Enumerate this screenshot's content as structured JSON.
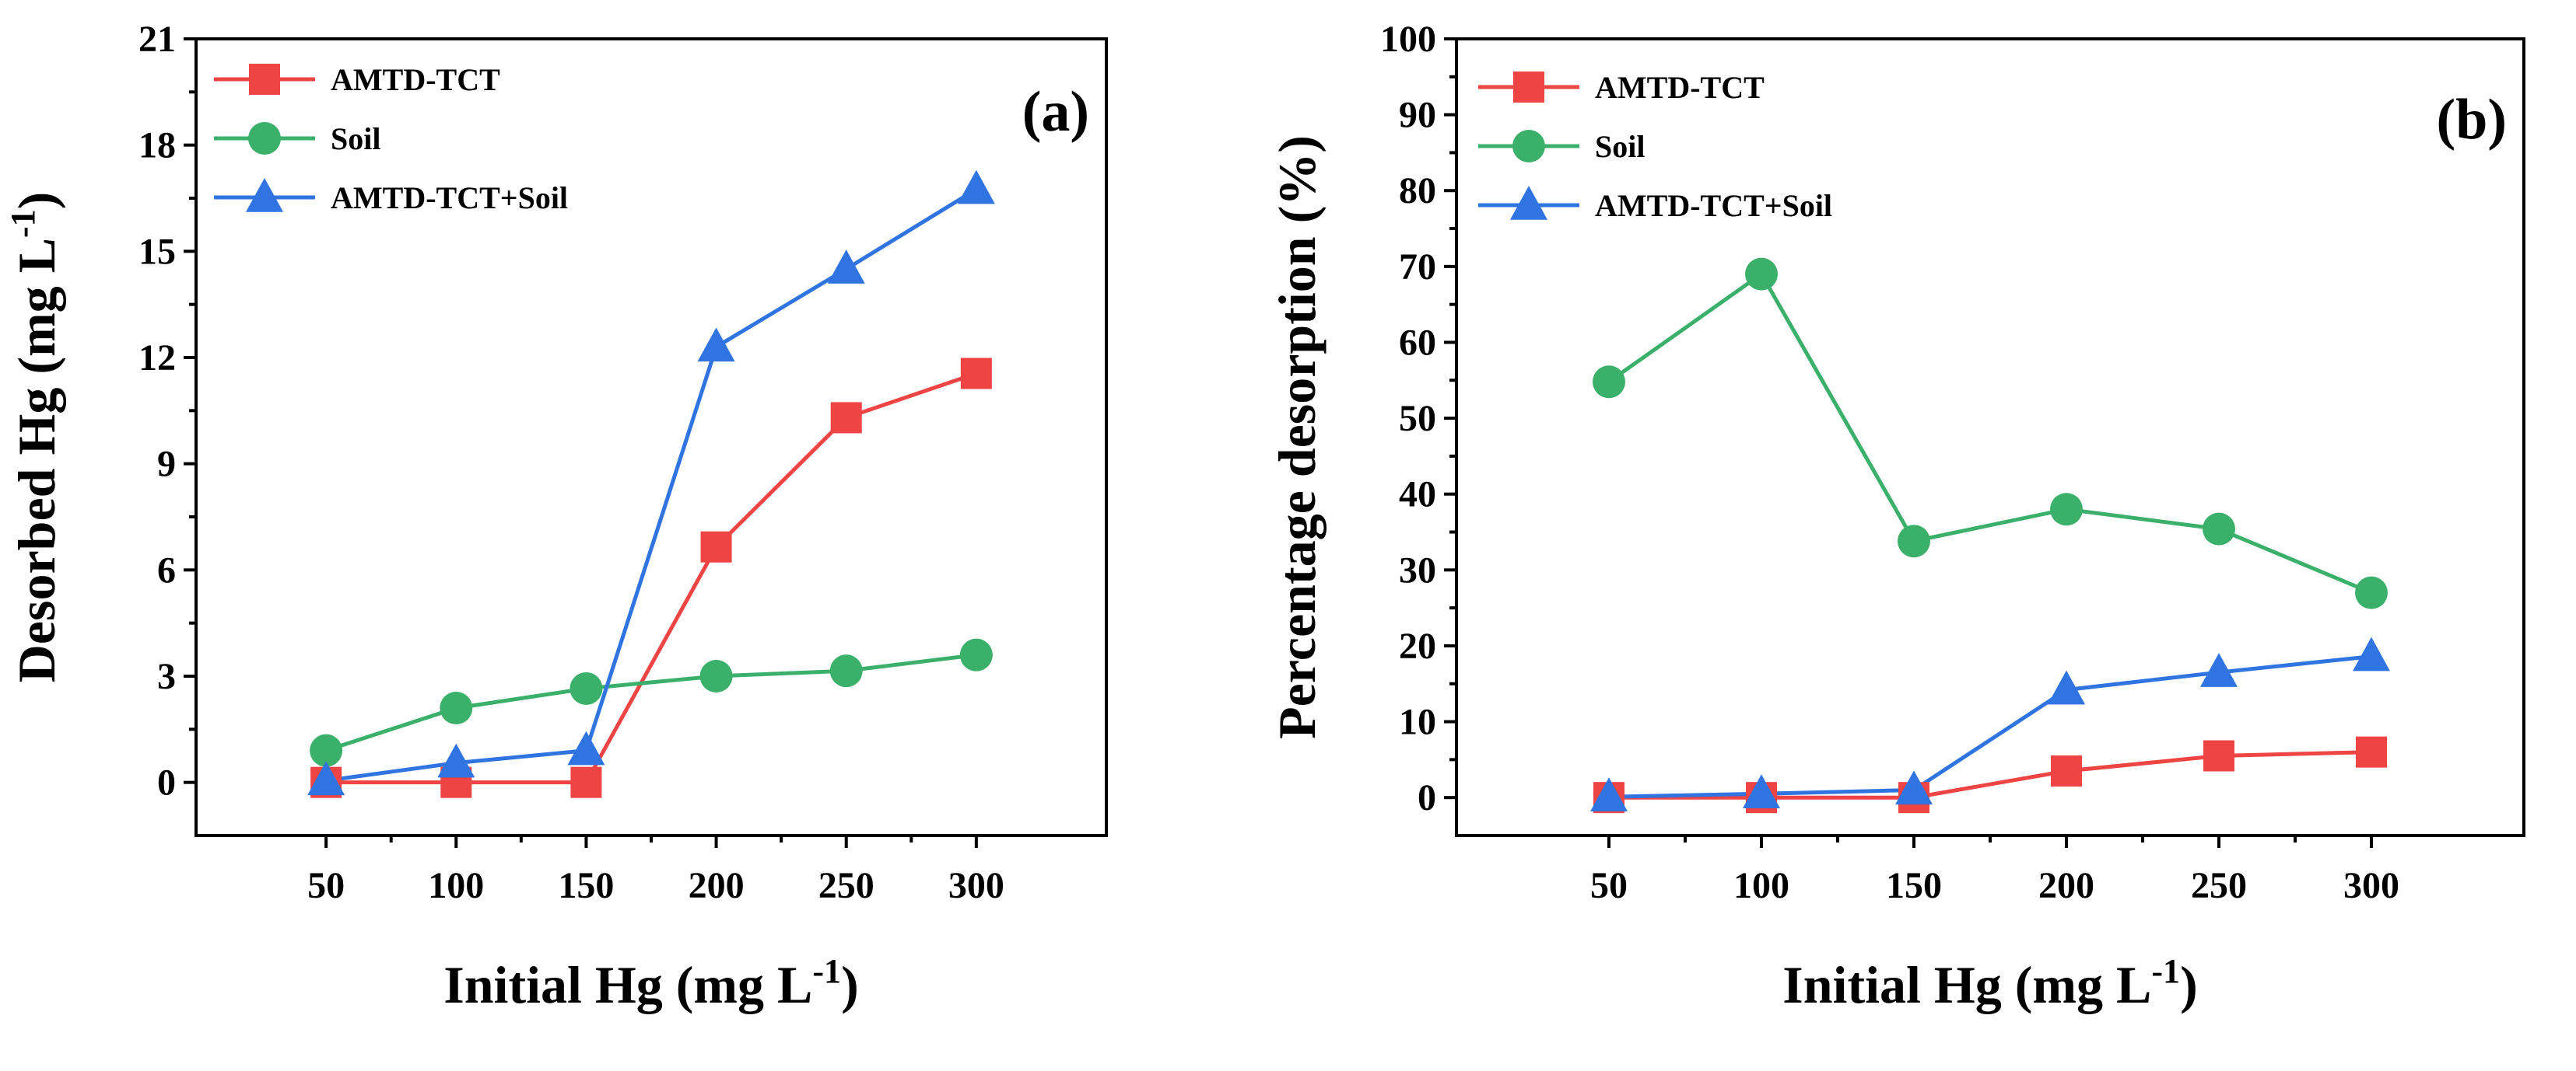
{
  "chart_data": [
    {
      "type": "line",
      "panel_label": "(a)",
      "title": "",
      "xlabel": "Initial Hg (mg L",
      "xlabel_sup": "-1",
      "xlabel_tail": ")",
      "ylabel": "Desorbed Hg (mg L",
      "ylabel_sup": "-1",
      "ylabel_tail": ")",
      "x": [
        50,
        100,
        150,
        200,
        250,
        300
      ],
      "xticks": [
        50,
        100,
        150,
        200,
        250,
        300
      ],
      "xlim": [
        0,
        350
      ],
      "ylim": [
        -1.5,
        21
      ],
      "yticks": [
        0,
        3,
        6,
        9,
        12,
        15,
        18,
        21
      ],
      "legend_position": "top-left",
      "series": [
        {
          "name": "AMTD-TCT",
          "color": "#ef4444",
          "marker": "square",
          "values": [
            0,
            0,
            0,
            6.65,
            10.3,
            11.55
          ]
        },
        {
          "name": "Soil",
          "color": "#3bb06a",
          "marker": "circle",
          "values": [
            0.9,
            2.1,
            2.65,
            3.0,
            3.15,
            3.6
          ]
        },
        {
          "name": "AMTD-TCT+Soil",
          "color": "#2f74e0",
          "marker": "triangle",
          "values": [
            0.05,
            0.55,
            0.9,
            12.3,
            14.5,
            16.75
          ]
        }
      ]
    },
    {
      "type": "line",
      "panel_label": "(b)",
      "title": "",
      "xlabel": "Initial Hg (mg L",
      "xlabel_sup": "-1",
      "xlabel_tail": ")",
      "ylabel": "Percentage desorption (%)",
      "ylabel_sup": "",
      "ylabel_tail": "",
      "x": [
        50,
        100,
        150,
        200,
        250,
        300
      ],
      "xticks": [
        50,
        100,
        150,
        200,
        250,
        300
      ],
      "xlim": [
        0,
        350
      ],
      "ylim": [
        -5,
        100
      ],
      "yticks": [
        0,
        10,
        20,
        30,
        40,
        50,
        60,
        70,
        80,
        90,
        100
      ],
      "legend_position": "top-left",
      "series": [
        {
          "name": "AMTD-TCT",
          "color": "#ef4444",
          "marker": "square",
          "values": [
            0,
            0,
            0,
            3.5,
            5.5,
            6.0
          ]
        },
        {
          "name": "Soil",
          "color": "#3bb06a",
          "marker": "circle",
          "values": [
            54.8,
            69.0,
            33.8,
            38.0,
            35.4,
            27.0
          ]
        },
        {
          "name": "AMTD-TCT+Soil",
          "color": "#2f74e0",
          "marker": "triangle",
          "values": [
            0.1,
            0.5,
            1.0,
            14.2,
            16.5,
            18.6
          ]
        }
      ]
    }
  ]
}
